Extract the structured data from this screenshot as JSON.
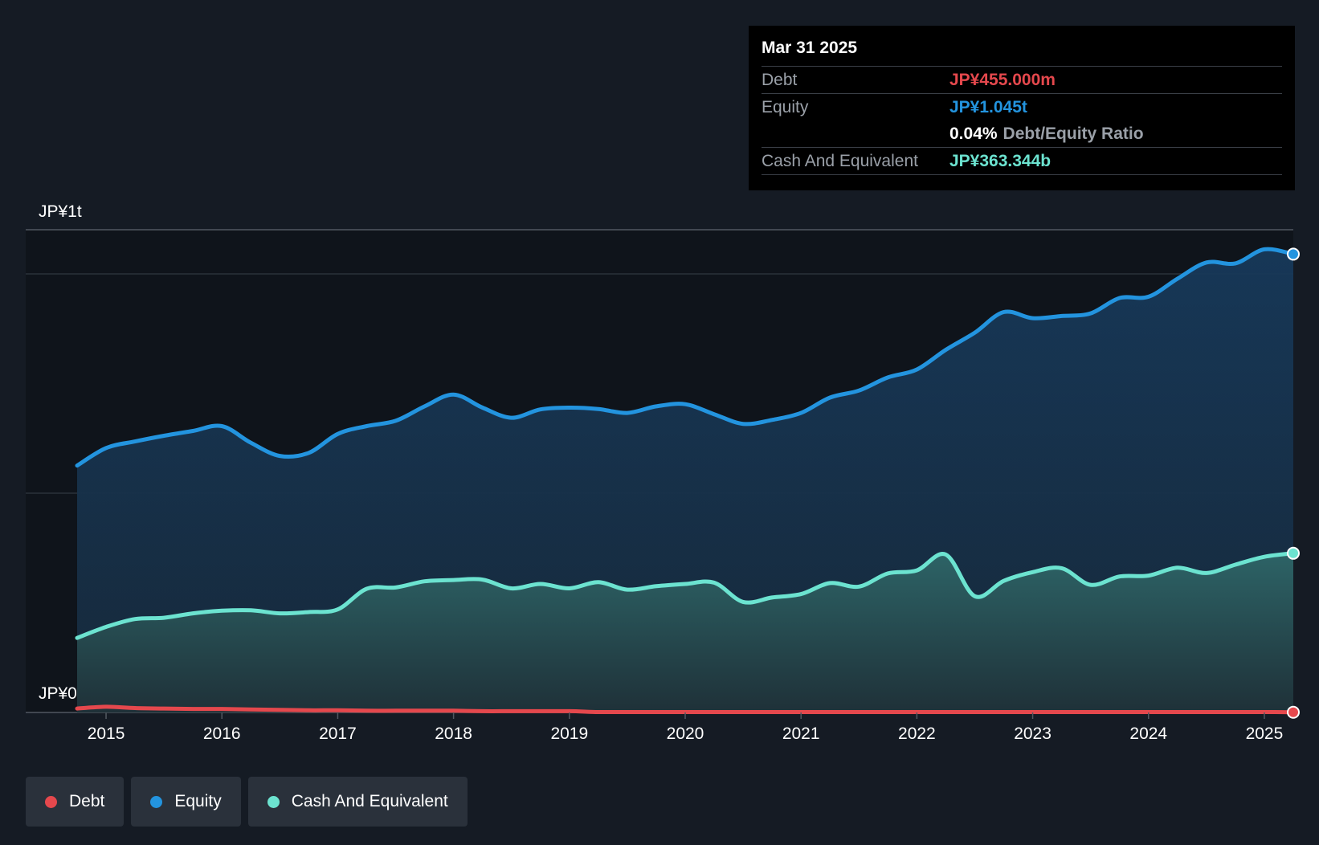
{
  "tooltip": {
    "date": "Mar 31 2025",
    "debt_label": "Debt",
    "debt_value": "JP¥455.000m",
    "equity_label": "Equity",
    "equity_value": "JP¥1.045t",
    "ratio_value": "0.04%",
    "ratio_label": "Debt/Equity Ratio",
    "cash_label": "Cash And Equivalent",
    "cash_value": "JP¥363.344b"
  },
  "legend": {
    "debt": "Debt",
    "equity": "Equity",
    "cash": "Cash And Equivalent"
  },
  "colors": {
    "debt": "#e5484d",
    "equity": "#2394df",
    "cash": "#6ce3d0",
    "background": "#151b24"
  },
  "chart_data": {
    "type": "area",
    "title": "",
    "xlabel": "",
    "ylabel": "",
    "unit": "JP¥ billions",
    "y_axis_labels": [
      "JP¥1t",
      "JP¥0"
    ],
    "ylim": [
      0,
      1100
    ],
    "xlim": [
      2014.75,
      2025.25
    ],
    "x_ticks": [
      "2015",
      "2016",
      "2017",
      "2018",
      "2019",
      "2020",
      "2021",
      "2022",
      "2023",
      "2024",
      "2025"
    ],
    "x": [
      2014.75,
      2015.0,
      2015.25,
      2015.5,
      2015.75,
      2016.0,
      2016.25,
      2016.5,
      2016.75,
      2017.0,
      2017.25,
      2017.5,
      2017.75,
      2018.0,
      2018.25,
      2018.5,
      2018.75,
      2019.0,
      2019.25,
      2019.5,
      2019.75,
      2020.0,
      2020.25,
      2020.5,
      2020.75,
      2021.0,
      2021.25,
      2021.5,
      2021.75,
      2022.0,
      2022.25,
      2022.5,
      2022.75,
      2023.0,
      2023.25,
      2023.5,
      2023.75,
      2024.0,
      2024.25,
      2024.5,
      2024.75,
      2025.0,
      2025.25
    ],
    "series": [
      {
        "name": "Equity",
        "values": [
          563,
          603,
          618,
          631,
          642,
          653,
          615,
          585,
          592,
          635,
          653,
          665,
          698,
          725,
          695,
          672,
          691,
          695,
          692,
          683,
          698,
          703,
          680,
          658,
          667,
          683,
          718,
          734,
          764,
          782,
          827,
          866,
          913,
          899,
          904,
          910,
          945,
          948,
          989,
          1026,
          1024,
          1056,
          1045
        ]
      },
      {
        "name": "Cash And Equivalent",
        "values": [
          170,
          195,
          213,
          216,
          226,
          232,
          233,
          226,
          229,
          235,
          282,
          285,
          299,
          302,
          303,
          283,
          293,
          283,
          297,
          280,
          288,
          293,
          296,
          252,
          262,
          270,
          295,
          287,
          317,
          324,
          360,
          265,
          300,
          320,
          329,
          291,
          310,
          312,
          330,
          318,
          337,
          355,
          363
        ]
      },
      {
        "name": "Debt",
        "values": [
          9,
          13,
          10,
          9,
          8,
          8,
          7,
          6,
          5,
          5,
          4,
          4,
          4,
          4,
          3,
          3,
          3,
          3,
          1,
          1,
          1,
          1,
          1,
          1,
          1,
          1,
          1,
          1,
          1,
          1,
          1,
          1,
          1,
          1,
          1,
          1,
          1,
          1,
          1,
          1,
          1,
          1,
          0.455
        ]
      }
    ]
  }
}
